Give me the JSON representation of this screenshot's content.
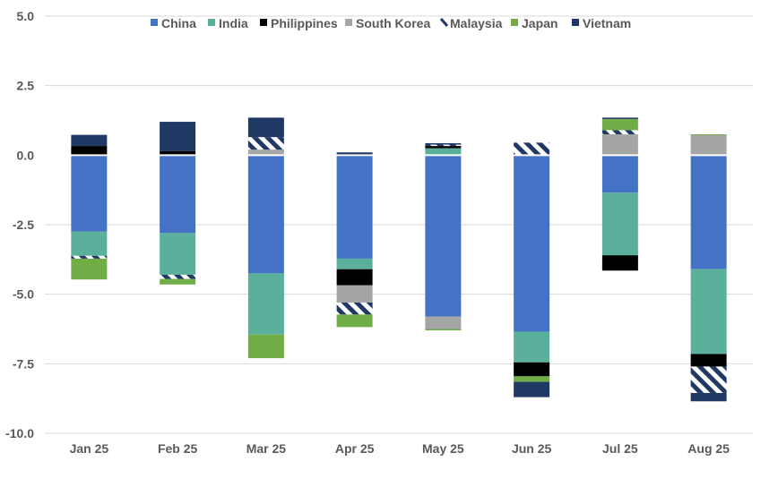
{
  "chart_data": {
    "type": "bar",
    "stacked": true,
    "title": "",
    "xlabel": "",
    "ylabel": "",
    "categories": [
      "Jan 25",
      "Feb 25",
      "Mar 25",
      "Apr 25",
      "May 25",
      "Jun 25",
      "Jul 25",
      "Aug 25"
    ],
    "ylim": [
      -10.0,
      5.0
    ],
    "y_ticks": [
      "5.0",
      "2.5",
      "0.0",
      "-2.5",
      "-5.0",
      "-7.5",
      "-10.0"
    ],
    "grid": true,
    "legend_position": "top",
    "series": [
      {
        "name": "China",
        "color": "#4472C4",
        "pattern": "solid",
        "values": [
          -2.75,
          -2.8,
          -4.25,
          -3.72,
          -5.8,
          -6.35,
          -1.35,
          -4.1
        ]
      },
      {
        "name": "India",
        "color": "#5BB09C",
        "pattern": "solid",
        "values": [
          -0.87,
          -1.5,
          -2.2,
          -0.38,
          0.25,
          -1.1,
          -2.25,
          -3.05
        ]
      },
      {
        "name": "Philippines",
        "color": "#000000",
        "pattern": "solid",
        "values": [
          0.33,
          0.15,
          0,
          -0.58,
          0.08,
          -0.5,
          -0.55,
          -0.45
        ]
      },
      {
        "name": "South Korea",
        "color": "#A5A5A5",
        "pattern": "solid",
        "values": [
          0,
          0,
          0.2,
          -0.62,
          -0.45,
          0,
          0.75,
          0.72
        ]
      },
      {
        "name": "Malaysia",
        "color": "#1F3864",
        "pattern": "stripes",
        "values": [
          -0.1,
          -0.15,
          0.45,
          -0.43,
          0.05,
          0.45,
          0.15,
          -0.95
        ]
      },
      {
        "name": "Japan",
        "color": "#70AD47",
        "pattern": "solid",
        "values": [
          -0.75,
          -0.2,
          -0.85,
          -0.45,
          -0.05,
          -0.2,
          0.4,
          0.03
        ]
      },
      {
        "name": "Vietnam",
        "color": "#203864",
        "pattern": "solid",
        "values": [
          0.4,
          1.05,
          0.7,
          0.1,
          0.05,
          -0.55,
          0.05,
          -0.3
        ]
      }
    ]
  }
}
